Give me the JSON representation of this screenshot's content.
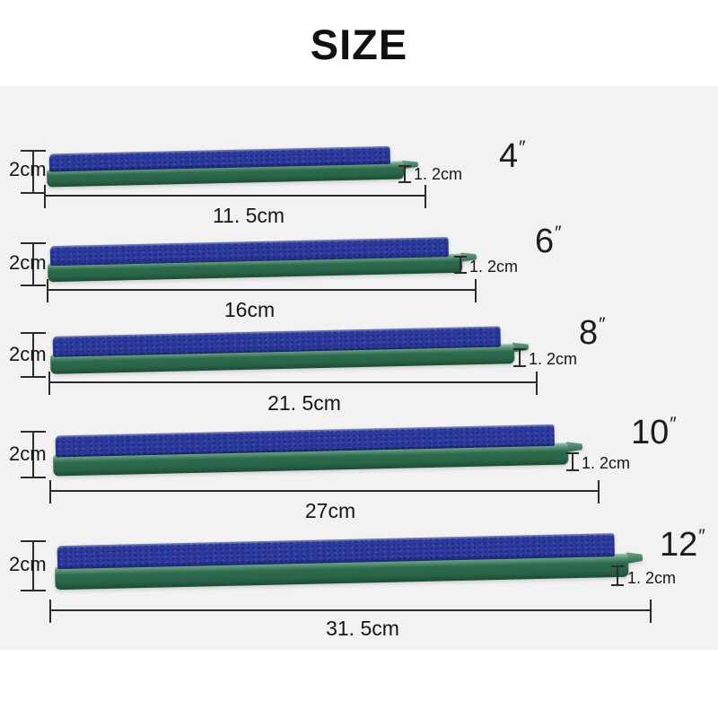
{
  "title": "SIZE",
  "colors": {
    "stone_blue": "#2c3a9e",
    "base_green": "#2e6b4e",
    "dimension_line": "#2b2b2b",
    "text_color": "#1a1a1a",
    "backdrop": "#f2f2f3"
  },
  "sizes": [
    {
      "inch_value": "4",
      "inch_mark": "″",
      "height_label": "2cm",
      "nozzle_label": "1. 2cm",
      "length_label": "11. 5cm"
    },
    {
      "inch_value": "6",
      "inch_mark": "″",
      "height_label": "2cm",
      "nozzle_label": "1. 2cm",
      "length_label": "16cm"
    },
    {
      "inch_value": "8",
      "inch_mark": "″",
      "height_label": "2cm",
      "nozzle_label": "1. 2cm",
      "length_label": "21. 5cm"
    },
    {
      "inch_value": "10",
      "inch_mark": "″",
      "height_label": "2cm",
      "nozzle_label": "1. 2cm",
      "length_label": "27cm"
    },
    {
      "inch_value": "12",
      "inch_mark": "″",
      "height_label": "2cm",
      "nozzle_label": "1. 2cm",
      "length_label": "31. 5cm"
    }
  ]
}
